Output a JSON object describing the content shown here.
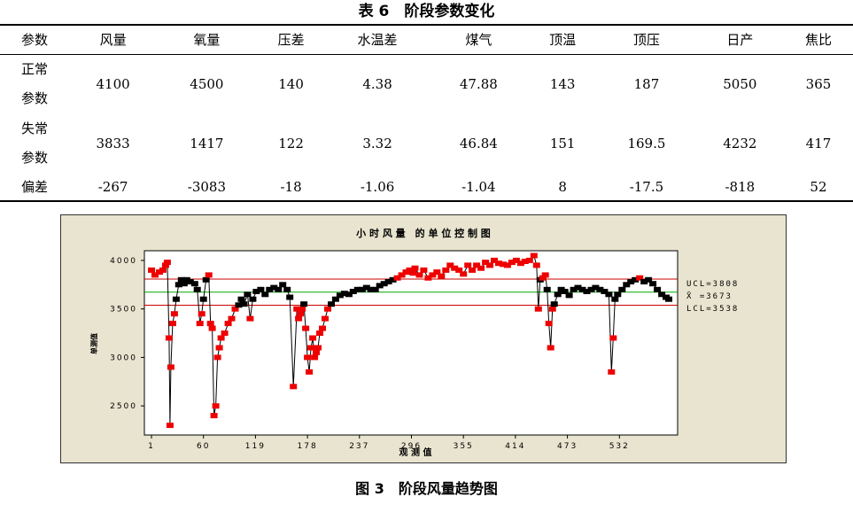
{
  "table": {
    "caption": "表 6　阶段参数变化",
    "headers": [
      "参数",
      "风量",
      "氧量",
      "压差",
      "水温差",
      "煤气",
      "顶温",
      "顶压",
      "日产",
      "焦比"
    ],
    "rows": [
      {
        "label_line1": "正常",
        "label_line2": "参数",
        "values": [
          "4100",
          "4500",
          "140",
          "4.38",
          "47.88",
          "143",
          "187",
          "5050",
          "365"
        ]
      },
      {
        "label_line1": "失常",
        "label_line2": "参数",
        "values": [
          "3833",
          "1417",
          "122",
          "3.32",
          "46.84",
          "151",
          "169.5",
          "4232",
          "417"
        ]
      },
      {
        "label_line1": "偏差",
        "label_line2": "",
        "values": [
          "-267",
          "-3083",
          "-18",
          "-1.06",
          "-1.04",
          "8",
          "-17.5",
          "-818",
          "52"
        ]
      }
    ]
  },
  "figure_caption": "图 3　阶段风量趋势图",
  "chart_data": {
    "type": "line",
    "title": "小 时 风 量　的 单 位 控 制 图",
    "xlabel": "观 测 值",
    "ylabel": "单测值",
    "x_ticks": [
      1,
      60,
      119,
      178,
      237,
      296,
      355,
      414,
      473,
      532
    ],
    "y_ticks": [
      2500,
      3000,
      3500,
      4000
    ],
    "xlim": [
      1,
      590
    ],
    "ylim": [
      2200,
      4100
    ],
    "grid": false,
    "control_lines": [
      {
        "label": "UCL=3808",
        "value": 3808,
        "color": "#cc0000"
      },
      {
        "label": "X̄ =3673",
        "value": 3673,
        "color": "#00aa00"
      },
      {
        "label": "LCL=3538",
        "value": 3538,
        "color": "#cc0000"
      }
    ],
    "in_control_color": "#000000",
    "out_of_control_color": "#ee0000",
    "series": [
      {
        "points": [
          [
            1,
            3900
          ],
          [
            5,
            3850
          ],
          [
            10,
            3880
          ],
          [
            14,
            3900
          ],
          [
            17,
            3950
          ],
          [
            19,
            3980
          ],
          [
            21,
            3200
          ],
          [
            22,
            2300
          ],
          [
            23,
            2900
          ],
          [
            25,
            3350
          ],
          [
            27,
            3450
          ],
          [
            29,
            3600
          ],
          [
            32,
            3750
          ],
          [
            35,
            3800
          ],
          [
            38,
            3760
          ],
          [
            41,
            3800
          ],
          [
            45,
            3780
          ],
          [
            50,
            3760
          ],
          [
            53,
            3700
          ],
          [
            56,
            3350
          ],
          [
            58,
            3450
          ],
          [
            60,
            3600
          ],
          [
            63,
            3800
          ],
          [
            66,
            3850
          ],
          [
            68,
            3350
          ],
          [
            70,
            3300
          ],
          [
            72,
            2400
          ],
          [
            74,
            2500
          ],
          [
            76,
            3000
          ],
          [
            78,
            3100
          ],
          [
            80,
            3200
          ],
          [
            84,
            3250
          ],
          [
            88,
            3350
          ],
          [
            92,
            3400
          ],
          [
            96,
            3500
          ],
          [
            100,
            3540
          ],
          [
            103,
            3600
          ],
          [
            106,
            3550
          ],
          [
            110,
            3650
          ],
          [
            113,
            3400
          ],
          [
            116,
            3600
          ],
          [
            120,
            3680
          ],
          [
            125,
            3700
          ],
          [
            130,
            3650
          ],
          [
            135,
            3700
          ],
          [
            140,
            3720
          ],
          [
            145,
            3700
          ],
          [
            150,
            3750
          ],
          [
            155,
            3700
          ],
          [
            158,
            3620
          ],
          [
            162,
            2700
          ],
          [
            166,
            3500
          ],
          [
            168,
            3400
          ],
          [
            170,
            3450
          ],
          [
            172,
            3500
          ],
          [
            174,
            3550
          ],
          [
            176,
            3300
          ],
          [
            178,
            3000
          ],
          [
            180,
            2850
          ],
          [
            182,
            3100
          ],
          [
            184,
            3200
          ],
          [
            186,
            3000
          ],
          [
            188,
            3050
          ],
          [
            190,
            3100
          ],
          [
            192,
            3250
          ],
          [
            195,
            3300
          ],
          [
            198,
            3400
          ],
          [
            201,
            3500
          ],
          [
            205,
            3550
          ],
          [
            210,
            3600
          ],
          [
            215,
            3640
          ],
          [
            220,
            3660
          ],
          [
            225,
            3650
          ],
          [
            230,
            3680
          ],
          [
            235,
            3700
          ],
          [
            240,
            3700
          ],
          [
            245,
            3720
          ],
          [
            250,
            3700
          ],
          [
            255,
            3700
          ],
          [
            260,
            3740
          ],
          [
            265,
            3760
          ],
          [
            270,
            3780
          ],
          [
            275,
            3800
          ],
          [
            280,
            3820
          ],
          [
            285,
            3850
          ],
          [
            290,
            3880
          ],
          [
            294,
            3900
          ],
          [
            298,
            3870
          ],
          [
            300,
            3920
          ],
          [
            305,
            3850
          ],
          [
            310,
            3900
          ],
          [
            315,
            3820
          ],
          [
            320,
            3850
          ],
          [
            325,
            3880
          ],
          [
            330,
            3840
          ],
          [
            335,
            3900
          ],
          [
            340,
            3950
          ],
          [
            345,
            3920
          ],
          [
            350,
            3900
          ],
          [
            355,
            3860
          ],
          [
            360,
            3950
          ],
          [
            365,
            3900
          ],
          [
            370,
            3950
          ],
          [
            375,
            3920
          ],
          [
            380,
            3980
          ],
          [
            385,
            3950
          ],
          [
            390,
            4000
          ],
          [
            395,
            3970
          ],
          [
            400,
            3960
          ],
          [
            405,
            3950
          ],
          [
            410,
            3980
          ],
          [
            415,
            4000
          ],
          [
            420,
            3970
          ],
          [
            425,
            3990
          ],
          [
            430,
            4000
          ],
          [
            435,
            4050
          ],
          [
            438,
            3950
          ],
          [
            440,
            3500
          ],
          [
            442,
            3800
          ],
          [
            445,
            3820
          ],
          [
            448,
            3850
          ],
          [
            450,
            3700
          ],
          [
            452,
            3350
          ],
          [
            454,
            3100
          ],
          [
            456,
            3500
          ],
          [
            458,
            3550
          ],
          [
            462,
            3650
          ],
          [
            466,
            3700
          ],
          [
            470,
            3680
          ],
          [
            475,
            3640
          ],
          [
            480,
            3700
          ],
          [
            485,
            3720
          ],
          [
            490,
            3700
          ],
          [
            495,
            3680
          ],
          [
            500,
            3700
          ],
          [
            505,
            3720
          ],
          [
            510,
            3700
          ],
          [
            515,
            3680
          ],
          [
            520,
            3650
          ],
          [
            523,
            2850
          ],
          [
            525,
            3200
          ],
          [
            527,
            3600
          ],
          [
            530,
            3650
          ],
          [
            535,
            3700
          ],
          [
            540,
            3750
          ],
          [
            545,
            3780
          ],
          [
            550,
            3800
          ],
          [
            555,
            3820
          ],
          [
            560,
            3780
          ],
          [
            565,
            3800
          ],
          [
            570,
            3760
          ],
          [
            575,
            3700
          ],
          [
            580,
            3650
          ],
          [
            585,
            3620
          ],
          [
            588,
            3600
          ]
        ]
      }
    ]
  }
}
